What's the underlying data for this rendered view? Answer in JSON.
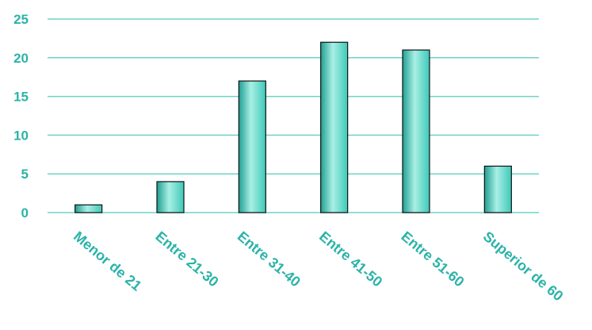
{
  "chart_data": {
    "type": "bar",
    "categories": [
      "Menor de 21",
      "Entre 21-30",
      "Entre 31-40",
      "Entre 41-50",
      "Entre 51-60",
      "Superior de 60"
    ],
    "values": [
      1,
      4,
      17,
      22,
      21,
      6
    ],
    "ylim": [
      0,
      25
    ],
    "yticks": [
      0,
      5,
      10,
      15,
      20,
      25
    ],
    "grid": true,
    "legend": "none",
    "colors": {
      "bar_light": "#a9efe5",
      "bar_mid": "#3ec9b8",
      "bar_dark": "#1f9f92",
      "bar_outline": "#111111",
      "gridline": "#6fd3c8",
      "label": "#2bb3a8"
    }
  }
}
